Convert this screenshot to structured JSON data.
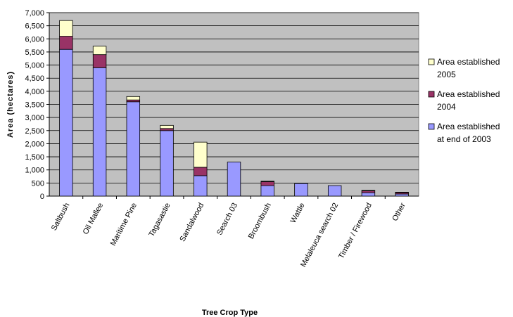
{
  "chart_data": {
    "type": "bar",
    "stacked": true,
    "title": "",
    "xlabel": "Tree Crop Type",
    "ylabel": "Area (hectares)",
    "ylim": [
      0,
      7000
    ],
    "ytick_step": 500,
    "yticks": [
      "0",
      "500",
      "1,000",
      "1,500",
      "2,000",
      "2,500",
      "3,000",
      "3,500",
      "4,000",
      "4,500",
      "5,000",
      "5,500",
      "6,000",
      "6,500",
      "7,000"
    ],
    "grid": true,
    "legend_position": "right",
    "categories": [
      "Saltbush",
      "Oil Mallee",
      "Maritime Pine",
      "Tagasastie",
      "Sandalwood",
      "Search 03",
      "Broombush",
      "Wattle",
      "Melaleuca search 02",
      "Timber / Firewood",
      "Other"
    ],
    "series": [
      {
        "name": "Area established at end of 2003",
        "legend_lines": [
          "Area established",
          "at end of 2003"
        ],
        "color": "#9999ff",
        "values": [
          5600,
          4900,
          3600,
          2500,
          780,
          1300,
          400,
          480,
          400,
          130,
          80
        ]
      },
      {
        "name": "Area established 2004",
        "legend_lines": [
          "Area established",
          "2004"
        ],
        "color": "#993366",
        "values": [
          500,
          500,
          70,
          80,
          320,
          0,
          150,
          0,
          0,
          70,
          50
        ]
      },
      {
        "name": "Area established 2005",
        "legend_lines": [
          "Area established",
          "2005"
        ],
        "color": "#ffffcc",
        "values": [
          600,
          320,
          130,
          120,
          960,
          0,
          20,
          0,
          0,
          20,
          20
        ]
      }
    ],
    "plot_background": "#c0c0c0",
    "grid_color": "#000000"
  }
}
